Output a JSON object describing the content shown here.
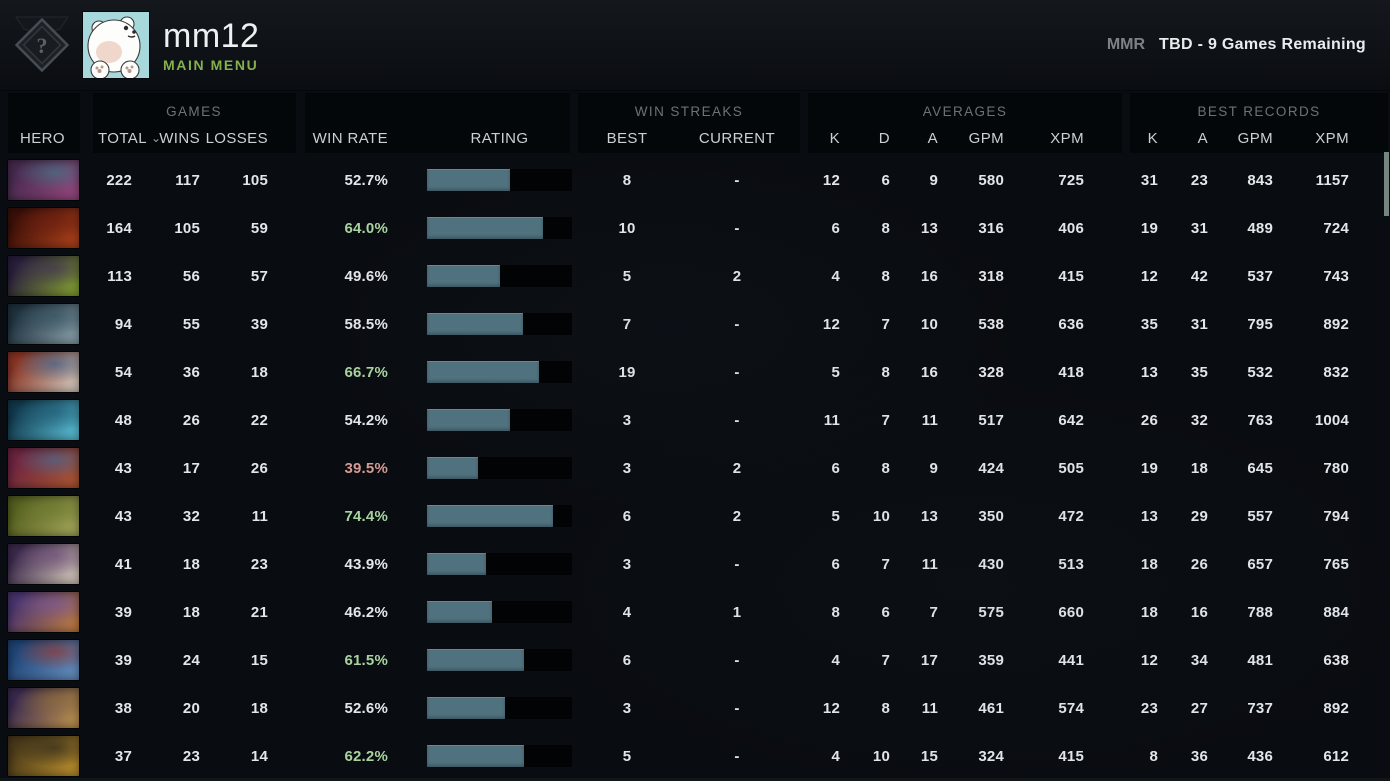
{
  "header": {
    "username": "mm12",
    "subtitle": "MAIN MENU",
    "mmr_label": "MMR",
    "mmr_value": "TBD - 9 Games Remaining",
    "rank_icon": "unranked-question-medal-icon",
    "avatar": "polar-bear-cartoon-avatar"
  },
  "colors": {
    "subtitle_green": "#84b14e",
    "rating_bar_fill": "#50727f",
    "win_rate_positive": "#a9d3a0",
    "win_rate_negative": "#d59a94",
    "panel_bg": "#04070a"
  },
  "table": {
    "groups": {
      "games": "GAMES",
      "win_streaks": "WIN STREAKS",
      "averages": "AVERAGES",
      "best_records": "BEST RECORDS"
    },
    "columns": {
      "hero": "HERO",
      "total": "TOTAL",
      "wins": "WINS",
      "losses": "LOSSES",
      "win_rate": "WIN RATE",
      "rating": "RATING",
      "best": "BEST",
      "current": "CURRENT",
      "k": "K",
      "d": "D",
      "a": "A",
      "gpm": "GPM",
      "xpm": "XPM"
    },
    "sort_column": "total",
    "sort_icon_glyph": "⌄",
    "rows": [
      {
        "hero": "templar-assassin",
        "portrait_colors": [
          "#472a4e",
          "#9b4a82",
          "#3e7d8a"
        ],
        "total": "222",
        "wins": "117",
        "losses": "105",
        "win_rate": "52.7%",
        "win_rate_tone": "neutral",
        "rating_pct": 57,
        "streak_best": "8",
        "streak_current": "-",
        "avg": {
          "k": "12",
          "d": "6",
          "a": "9",
          "gpm": "580",
          "xpm": "725"
        },
        "best": {
          "k": "31",
          "a": "23",
          "gpm": "843",
          "xpm": "1157"
        }
      },
      {
        "hero": "lion",
        "portrait_colors": [
          "#3d1008",
          "#b5441c",
          "#6b1d10"
        ],
        "total": "164",
        "wins": "105",
        "losses": "59",
        "win_rate": "64.0%",
        "win_rate_tone": "positive",
        "rating_pct": 80,
        "streak_best": "10",
        "streak_current": "-",
        "avg": {
          "k": "6",
          "d": "8",
          "a": "13",
          "gpm": "316",
          "xpm": "406"
        },
        "best": {
          "k": "19",
          "a": "31",
          "gpm": "489",
          "xpm": "724"
        }
      },
      {
        "hero": "rubick",
        "portrait_colors": [
          "#2a1f3d",
          "#8aa832",
          "#3f2f55"
        ],
        "total": "113",
        "wins": "56",
        "losses": "57",
        "win_rate": "49.6%",
        "win_rate_tone": "neutral",
        "rating_pct": 50,
        "streak_best": "5",
        "streak_current": "2",
        "avg": {
          "k": "4",
          "d": "8",
          "a": "16",
          "gpm": "318",
          "xpm": "415"
        },
        "best": {
          "k": "12",
          "a": "42",
          "gpm": "537",
          "xpm": "743"
        }
      },
      {
        "hero": "phantom-assassin",
        "portrait_colors": [
          "#1f3340",
          "#8fa7b0",
          "#32505e"
        ],
        "total": "94",
        "wins": "55",
        "losses": "39",
        "win_rate": "58.5%",
        "win_rate_tone": "neutral",
        "rating_pct": 66,
        "streak_best": "7",
        "streak_current": "-",
        "avg": {
          "k": "12",
          "d": "7",
          "a": "10",
          "gpm": "538",
          "xpm": "636"
        },
        "best": {
          "k": "35",
          "a": "31",
          "gpm": "795",
          "xpm": "892"
        }
      },
      {
        "hero": "troll-warlord",
        "portrait_colors": [
          "#8a3524",
          "#d8d3c8",
          "#2b5a8a"
        ],
        "total": "54",
        "wins": "36",
        "losses": "18",
        "win_rate": "66.7%",
        "win_rate_tone": "positive",
        "rating_pct": 77,
        "streak_best": "19",
        "streak_current": "-",
        "avg": {
          "k": "5",
          "d": "8",
          "a": "16",
          "gpm": "328",
          "xpm": "418"
        },
        "best": {
          "k": "13",
          "a": "35",
          "gpm": "532",
          "xpm": "832"
        }
      },
      {
        "hero": "storm-spirit",
        "portrait_colors": [
          "#123a4e",
          "#5fc8e0",
          "#1b5a73"
        ],
        "total": "48",
        "wins": "26",
        "losses": "22",
        "win_rate": "54.2%",
        "win_rate_tone": "neutral",
        "rating_pct": 57,
        "streak_best": "3",
        "streak_current": "-",
        "avg": {
          "k": "11",
          "d": "7",
          "a": "11",
          "gpm": "517",
          "xpm": "642"
        },
        "best": {
          "k": "26",
          "a": "32",
          "gpm": "763",
          "xpm": "1004"
        }
      },
      {
        "hero": "batrider",
        "portrait_colors": [
          "#6e2440",
          "#b05a30",
          "#3f6fa0"
        ],
        "total": "43",
        "wins": "17",
        "losses": "26",
        "win_rate": "39.5%",
        "win_rate_tone": "negative",
        "rating_pct": 35,
        "streak_best": "3",
        "streak_current": "2",
        "avg": {
          "k": "6",
          "d": "8",
          "a": "9",
          "gpm": "424",
          "xpm": "505"
        },
        "best": {
          "k": "19",
          "a": "18",
          "gpm": "645",
          "xpm": "780"
        }
      },
      {
        "hero": "pudge",
        "portrait_colors": [
          "#55601f",
          "#a9ab5e",
          "#6b7a2e"
        ],
        "total": "43",
        "wins": "32",
        "losses": "11",
        "win_rate": "74.4%",
        "win_rate_tone": "positive",
        "rating_pct": 87,
        "streak_best": "6",
        "streak_current": "2",
        "avg": {
          "k": "5",
          "d": "10",
          "a": "13",
          "gpm": "350",
          "xpm": "472"
        },
        "best": {
          "k": "13",
          "a": "29",
          "gpm": "557",
          "xpm": "794"
        }
      },
      {
        "hero": "invoker",
        "portrait_colors": [
          "#3d2a4d",
          "#ded2c2",
          "#6e4a7a"
        ],
        "total": "41",
        "wins": "18",
        "losses": "23",
        "win_rate": "43.9%",
        "win_rate_tone": "neutral",
        "rating_pct": 41,
        "streak_best": "3",
        "streak_current": "-",
        "avg": {
          "k": "6",
          "d": "7",
          "a": "11",
          "gpm": "430",
          "xpm": "513"
        },
        "best": {
          "k": "18",
          "a": "26",
          "gpm": "657",
          "xpm": "765"
        }
      },
      {
        "hero": "anti-mage",
        "portrait_colors": [
          "#4a3570",
          "#c8813f",
          "#7a5aa0"
        ],
        "total": "39",
        "wins": "18",
        "losses": "21",
        "win_rate": "46.2%",
        "win_rate_tone": "neutral",
        "rating_pct": 45,
        "streak_best": "4",
        "streak_current": "1",
        "avg": {
          "k": "8",
          "d": "6",
          "a": "7",
          "gpm": "575",
          "xpm": "660"
        },
        "best": {
          "k": "18",
          "a": "16",
          "gpm": "788",
          "xpm": "884"
        }
      },
      {
        "hero": "ogre-magi",
        "portrait_colors": [
          "#1f4578",
          "#6a94c4",
          "#a03020"
        ],
        "total": "39",
        "wins": "24",
        "losses": "15",
        "win_rate": "61.5%",
        "win_rate_tone": "positive",
        "rating_pct": 67,
        "streak_best": "6",
        "streak_current": "-",
        "avg": {
          "k": "4",
          "d": "7",
          "a": "17",
          "gpm": "359",
          "xpm": "441"
        },
        "best": {
          "k": "12",
          "a": "34",
          "gpm": "481",
          "xpm": "638"
        }
      },
      {
        "hero": "monkey-king",
        "portrait_colors": [
          "#3a2a50",
          "#c89a4f",
          "#8a6a3a"
        ],
        "total": "38",
        "wins": "20",
        "losses": "18",
        "win_rate": "52.6%",
        "win_rate_tone": "neutral",
        "rating_pct": 54,
        "streak_best": "3",
        "streak_current": "-",
        "avg": {
          "k": "12",
          "d": "8",
          "a": "11",
          "gpm": "461",
          "xpm": "574"
        },
        "best": {
          "k": "23",
          "a": "27",
          "gpm": "737",
          "xpm": "892"
        }
      },
      {
        "hero": "juggernaut",
        "portrait_colors": [
          "#4a3a1a",
          "#c2952f",
          "#23201a"
        ],
        "total": "37",
        "wins": "23",
        "losses": "14",
        "win_rate": "62.2%",
        "win_rate_tone": "positive",
        "rating_pct": 67,
        "streak_best": "5",
        "streak_current": "-",
        "avg": {
          "k": "4",
          "d": "10",
          "a": "15",
          "gpm": "324",
          "xpm": "415"
        },
        "best": {
          "k": "8",
          "a": "36",
          "gpm": "436",
          "xpm": "612"
        }
      }
    ]
  }
}
